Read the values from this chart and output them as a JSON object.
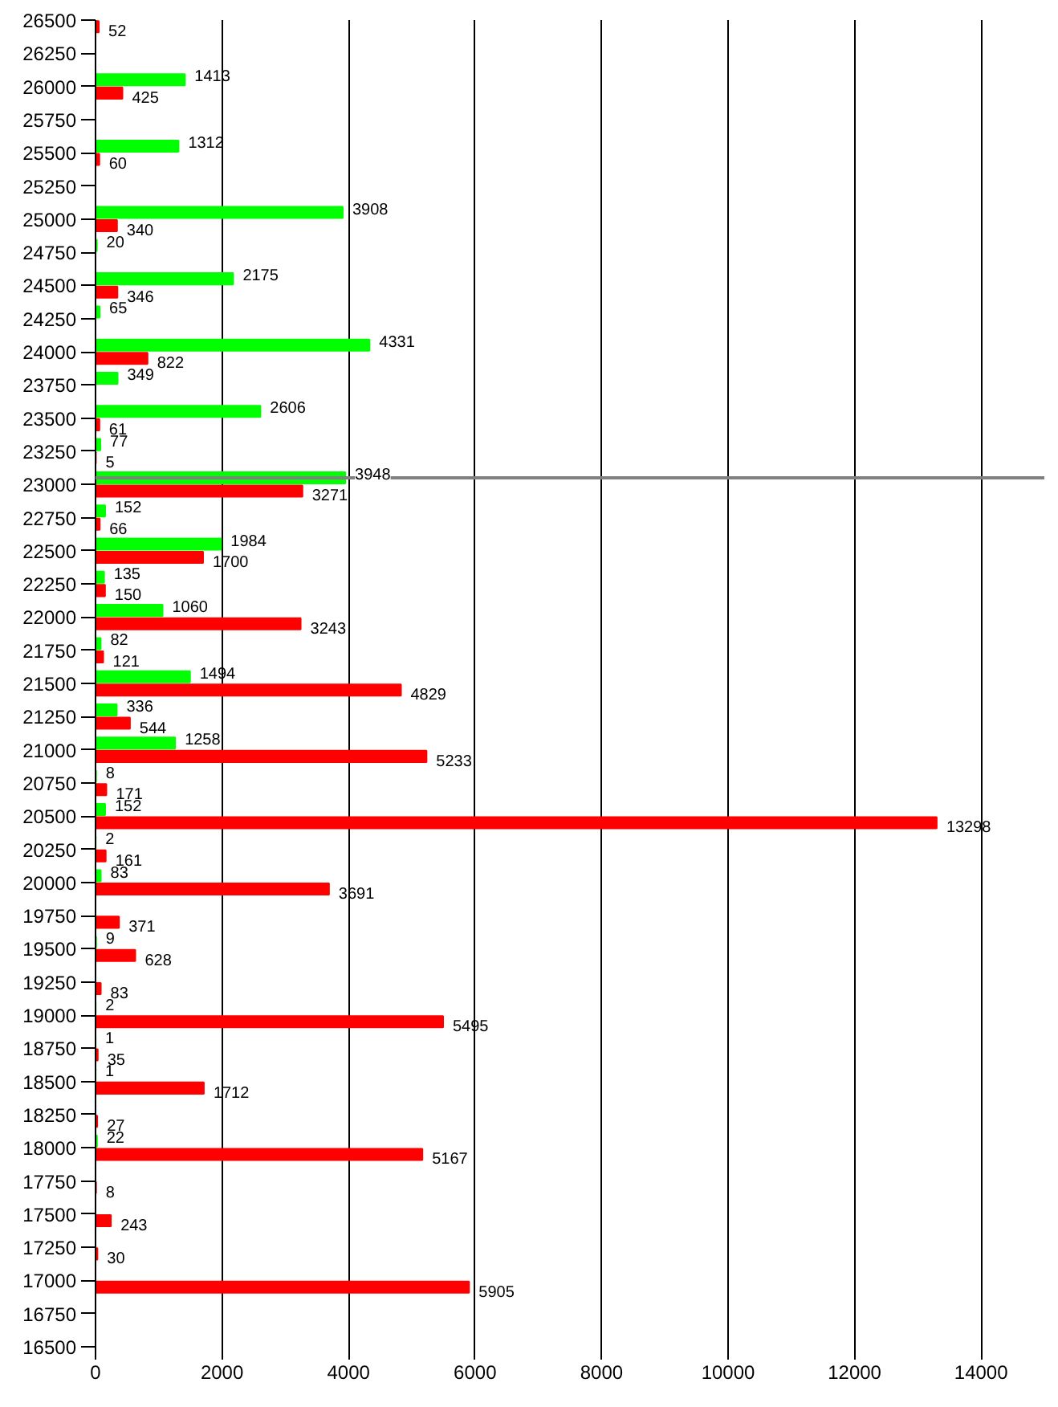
{
  "chart_data": {
    "type": "bar",
    "orientation": "horizontal",
    "x": [
      26500,
      26000,
      25500,
      25000,
      24750,
      24500,
      24250,
      24000,
      23750,
      23500,
      23250,
      23000,
      22750,
      22500,
      22250,
      22000,
      21750,
      21500,
      21250,
      21000,
      20750,
      20500,
      20250,
      20000,
      19750,
      19500,
      19250,
      19000,
      18750,
      18500,
      18250,
      18000,
      17750,
      17500,
      17250,
      17000
    ],
    "series": [
      {
        "color": "#00ff00",
        "values": [
          null,
          1413,
          1312,
          3908,
          20,
          2175,
          65,
          4331,
          349,
          2606,
          77,
          3948,
          152,
          1984,
          135,
          1060,
          82,
          1494,
          336,
          1258,
          8,
          152,
          2,
          83,
          null,
          9,
          null,
          2,
          1,
          1,
          null,
          22,
          null,
          null,
          null,
          null
        ]
      },
      {
        "color": "#ff0000",
        "values": [
          52,
          425,
          60,
          340,
          null,
          346,
          null,
          822,
          null,
          61,
          5,
          3271,
          66,
          1700,
          150,
          3243,
          121,
          4829,
          544,
          5233,
          171,
          13298,
          161,
          3691,
          371,
          628,
          83,
          5495,
          35,
          1712,
          27,
          5167,
          8,
          243,
          30,
          5905
        ]
      }
    ],
    "xlim": [
      0,
      15000
    ],
    "xticks": [
      0,
      2000,
      4000,
      6000,
      8000,
      10000,
      12000,
      14000
    ],
    "ylim": [
      16500,
      26500
    ],
    "yticks": [
      16500,
      16750,
      17000,
      17250,
      17500,
      17750,
      18000,
      18250,
      18500,
      18750,
      19000,
      19250,
      19500,
      19750,
      20000,
      20250,
      20500,
      20750,
      21000,
      21250,
      21500,
      21750,
      22000,
      22250,
      22500,
      22750,
      23000,
      23250,
      23500,
      23750,
      24000,
      24250,
      24500,
      24750,
      25000,
      25250,
      25500,
      25750,
      26000,
      26250,
      26500
    ],
    "ref_lines": [
      {
        "axis": "y",
        "value": 23050,
        "color": "#808080"
      }
    ],
    "data_labels": true,
    "grid": "x"
  }
}
